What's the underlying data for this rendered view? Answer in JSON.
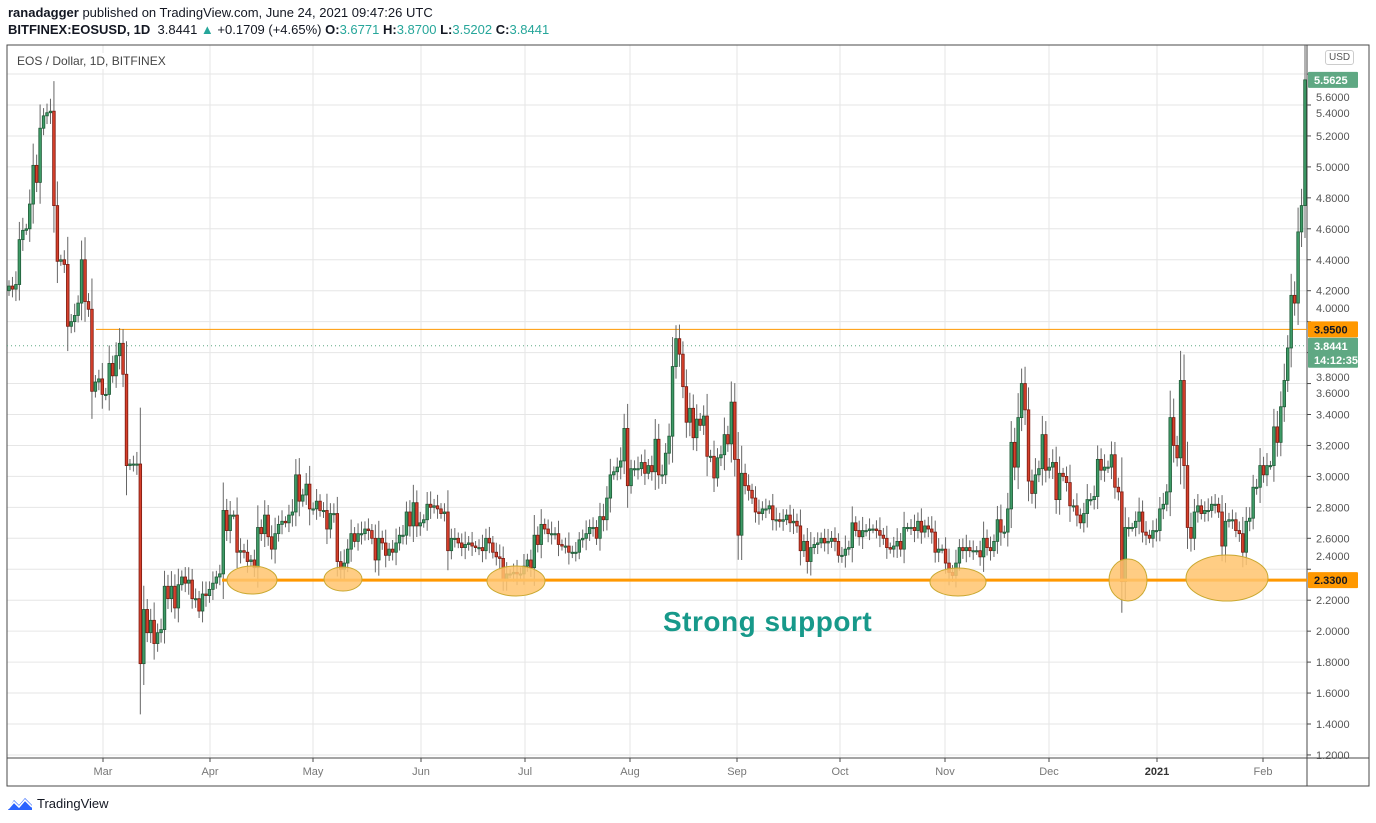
{
  "header": {
    "author": "ranadagger",
    "published_text": "published on TradingView.com, June 24, 2021 09:47:26 UTC",
    "symbol": "BITFINEX:EOSUSD, 1D",
    "last": "3.8441",
    "change": "+0.1709 (+4.65%)",
    "o_label": "O:",
    "o": "3.6771",
    "h_label": "H:",
    "h": "3.8700",
    "l_label": "L:",
    "l": "3.5202",
    "c_label": "C:",
    "c": "3.8441"
  },
  "pane_title": "EOS / Dollar, 1D, BITFINEX",
  "currency": "USD",
  "annotation": "Strong support",
  "footer": {
    "brand": "TradingView"
  },
  "colors": {
    "up": "#3e9b67",
    "down": "#d6402c",
    "support": "#ff9800",
    "highlight": "#ffc46e",
    "annotation": "#17998a",
    "last_tag": "#5fa883"
  },
  "chart_data": {
    "type": "candlestick",
    "title": "EOS / Dollar, 1D, BITFINEX",
    "ylim": [
      1.2,
      5.6
    ],
    "y_ticks": [
      "5.6000",
      "5.4000",
      "5.2000",
      "5.0000",
      "4.8000",
      "4.6000",
      "4.4000",
      "4.2000",
      "4.0000",
      "3.8000",
      "3.6000",
      "3.4000",
      "3.2000",
      "3.0000",
      "2.8000",
      "2.6000",
      "2.4000",
      "2.2000",
      "2.0000",
      "1.8000",
      "1.6000",
      "1.4000",
      "1.2000"
    ],
    "x_ticks": [
      "Mar",
      "Apr",
      "May",
      "Jun",
      "Jul",
      "Aug",
      "Sep",
      "Oct",
      "Nov",
      "Dec",
      "2021",
      "Feb"
    ],
    "grid": true,
    "first_open": 4.2,
    "closes": [
      4.23,
      4.21,
      4.24,
      4.53,
      4.59,
      4.6,
      4.76,
      5.01,
      4.9,
      5.25,
      5.33,
      5.35,
      5.36,
      4.75,
      4.39,
      4.4,
      4.37,
      3.97,
      4.0,
      4.04,
      4.12,
      4.4,
      4.13,
      4.08,
      3.55,
      3.61,
      3.63,
      3.53,
      3.53,
      3.73,
      3.65,
      3.78,
      3.86,
      3.66,
      3.07,
      3.08,
      3.08,
      3.08,
      1.79,
      2.14,
      1.99,
      2.07,
      1.92,
      1.99,
      2.01,
      2.29,
      2.21,
      2.29,
      2.15,
      2.3,
      2.35,
      2.31,
      2.33,
      2.21,
      2.21,
      2.13,
      2.24,
      2.23,
      2.27,
      2.31,
      2.35,
      2.37,
      2.78,
      2.65,
      2.75,
      2.75,
      2.51,
      2.52,
      2.51,
      2.45,
      2.46,
      2.41,
      2.67,
      2.63,
      2.75,
      2.61,
      2.53,
      2.63,
      2.69,
      2.71,
      2.7,
      2.75,
      2.77,
      3.01,
      2.84,
      2.88,
      2.95,
      2.79,
      2.79,
      2.84,
      2.78,
      2.78,
      2.66,
      2.76,
      2.76,
      2.45,
      2.4,
      2.44,
      2.53,
      2.63,
      2.58,
      2.63,
      2.63,
      2.66,
      2.65,
      2.6,
      2.46,
      2.6,
      2.57,
      2.49,
      2.53,
      2.51,
      2.57,
      2.62,
      2.62,
      2.77,
      2.68,
      2.83,
      2.68,
      2.7,
      2.72,
      2.82,
      2.8,
      2.81,
      2.79,
      2.76,
      2.77,
      2.52,
      2.6,
      2.6,
      2.57,
      2.54,
      2.56,
      2.57,
      2.55,
      2.54,
      2.54,
      2.52,
      2.6,
      2.57,
      2.51,
      2.48,
      2.47,
      2.33,
      2.37,
      2.37,
      2.38,
      2.37,
      2.37,
      2.42,
      2.46,
      2.41,
      2.62,
      2.56,
      2.69,
      2.66,
      2.63,
      2.63,
      2.63,
      2.56,
      2.55,
      2.55,
      2.51,
      2.51,
      2.51,
      2.59,
      2.6,
      2.63,
      2.67,
      2.67,
      2.6,
      2.74,
      2.72,
      2.86,
      3.01,
      3.03,
      3.06,
      3.1,
      3.31,
      2.94,
      3.05,
      3.05,
      3.05,
      3.09,
      3.02,
      3.07,
      3.03,
      3.24,
      3.01,
      3.01,
      3.15,
      3.26,
      3.71,
      3.89,
      3.79,
      3.58,
      3.35,
      3.44,
      3.25,
      3.37,
      3.33,
      3.39,
      3.13,
      3.13,
      2.99,
      3.12,
      3.14,
      3.27,
      3.21,
      3.48,
      3.11,
      2.62,
      3.02,
      2.94,
      2.91,
      2.86,
      2.77,
      2.76,
      2.79,
      2.79,
      2.81,
      2.72,
      2.72,
      2.71,
      2.72,
      2.75,
      2.7,
      2.71,
      2.68,
      2.52,
      2.58,
      2.45,
      2.54,
      2.56,
      2.57,
      2.6,
      2.57,
      2.58,
      2.6,
      2.58,
      2.49,
      2.49,
      2.53,
      2.54,
      2.7,
      2.65,
      2.61,
      2.65,
      2.65,
      2.66,
      2.66,
      2.65,
      2.62,
      2.6,
      2.54,
      2.53,
      2.55,
      2.58,
      2.53,
      2.67,
      2.67,
      2.67,
      2.65,
      2.71,
      2.64,
      2.68,
      2.66,
      2.64,
      2.51,
      2.53,
      2.53,
      2.44,
      2.38,
      2.36,
      2.44,
      2.54,
      2.52,
      2.54,
      2.52,
      2.52,
      2.52,
      2.48,
      2.6,
      2.54,
      2.52,
      2.58,
      2.72,
      2.64,
      2.64,
      2.79,
      3.22,
      3.06,
      3.38,
      3.6,
      3.43,
      2.97,
      2.89,
      3.01,
      3.05,
      3.27,
      3.04,
      3.06,
      3.09,
      2.85,
      3.02,
      3.0,
      2.96,
      2.81,
      2.81,
      2.75,
      2.7,
      2.76,
      2.85,
      2.85,
      2.87,
      3.11,
      3.04,
      3.06,
      3.06,
      3.14,
      2.93,
      2.9,
      2.32,
      2.67,
      2.67,
      2.67,
      2.71,
      2.77,
      2.64,
      2.62,
      2.6,
      2.65,
      2.65,
      2.79,
      2.82,
      2.9,
      3.38,
      3.2,
      3.12,
      3.62,
      3.07,
      2.67,
      2.6,
      2.77,
      2.81,
      2.76,
      2.78,
      2.78,
      2.82,
      2.82,
      2.77,
      2.55,
      2.71,
      2.72,
      2.72,
      2.65,
      2.63,
      2.51,
      2.71,
      2.73,
      2.93,
      2.93,
      3.07,
      3.01,
      3.07,
      3.07,
      3.32,
      3.22,
      3.45,
      3.62,
      3.83,
      4.17,
      4.12,
      4.58,
      4.75,
      5.5625
    ],
    "horizontal_levels": [
      {
        "name": "resistance",
        "value": 3.95,
        "label": "3.9500"
      },
      {
        "name": "support",
        "value": 2.33,
        "label": "2.3300"
      }
    ],
    "last_price": {
      "value": 3.8441,
      "label": "3.8441",
      "countdown": "14:12:35"
    },
    "last_close_tag": {
      "value": 5.5625,
      "label": "5.5625"
    },
    "support_touches": 6
  }
}
